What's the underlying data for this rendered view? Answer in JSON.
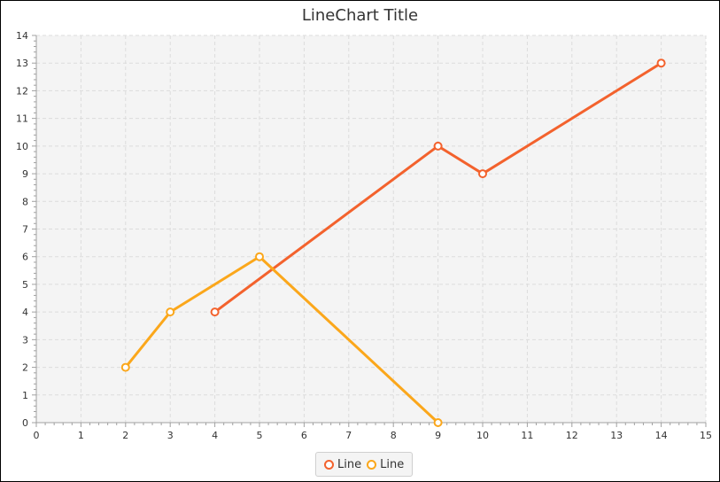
{
  "chart_data": {
    "type": "line",
    "title": "LineChart Title",
    "xlabel": "",
    "ylabel": "",
    "xlim": [
      0,
      15
    ],
    "ylim": [
      0,
      14
    ],
    "x_ticks": [
      0,
      1,
      2,
      3,
      4,
      5,
      6,
      7,
      8,
      9,
      10,
      11,
      12,
      13,
      14,
      15
    ],
    "y_ticks": [
      0,
      1,
      2,
      3,
      4,
      5,
      6,
      7,
      8,
      9,
      10,
      11,
      12,
      13,
      14
    ],
    "grid": true,
    "legend_position": "bottom",
    "series": [
      {
        "name": "Line",
        "color": "#f3622d",
        "points": [
          [
            4,
            4
          ],
          [
            9,
            10
          ],
          [
            10,
            9
          ],
          [
            14,
            13
          ]
        ]
      },
      {
        "name": "Line",
        "color": "#fba71b",
        "points": [
          [
            2,
            2
          ],
          [
            3,
            4
          ],
          [
            5,
            6
          ],
          [
            9,
            0
          ]
        ]
      }
    ]
  }
}
